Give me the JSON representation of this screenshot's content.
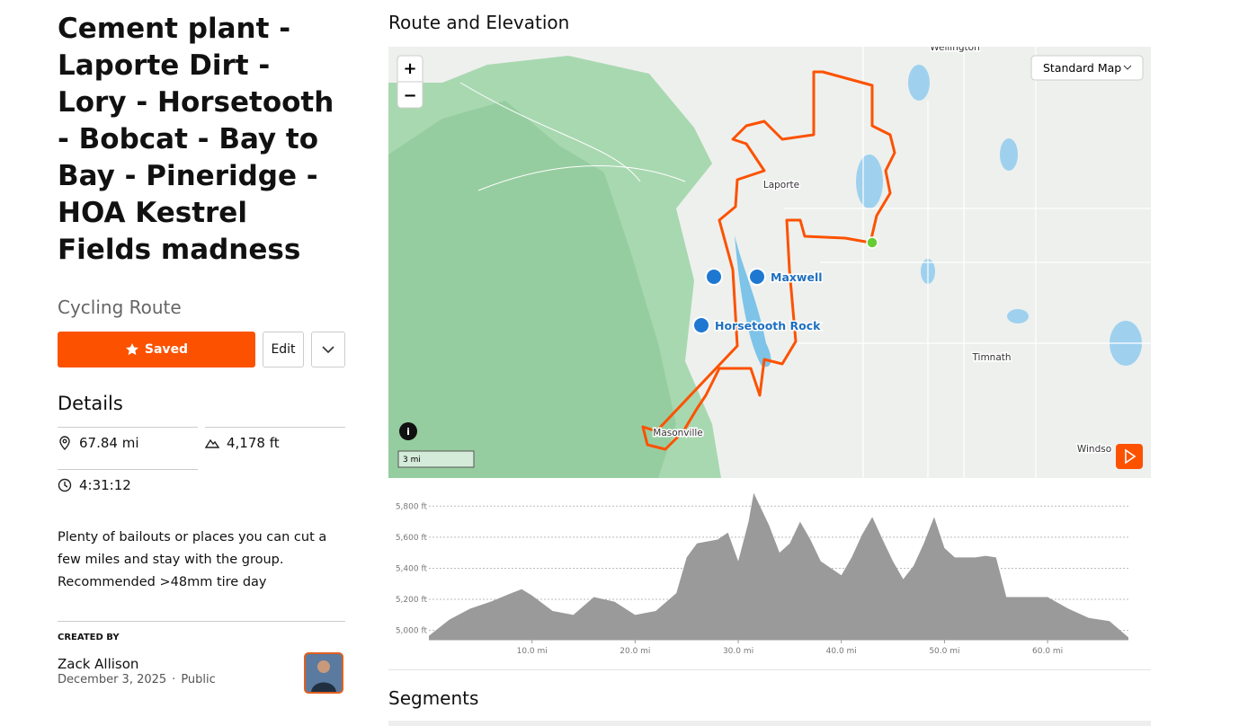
{
  "route": {
    "title": "Cement plant - Laporte Dirt - Lory - Horsetooth - Bobcat - Bay to Bay - Pineridge - HOA Kestrel Fields madness",
    "kind": "Cycling Route",
    "saved": "Saved",
    "edit": "Edit"
  },
  "details": {
    "heading": "Details",
    "distance": "67.84 mi",
    "elevation": "4,178 ft",
    "time": "4:31:12"
  },
  "description": "Plenty of bailouts or places you can cut a few miles and stay with the group. Recommended >48mm tire day",
  "creator": {
    "label": "CREATED BY",
    "name": "Zack Allison",
    "date": "December 3, 2025",
    "separator": "·",
    "visibility": "Public"
  },
  "map": {
    "heading": "Route and Elevation",
    "style": "Standard Map",
    "zoom_in": "+",
    "zoom_out": "−",
    "scale": "3 mi",
    "places": [
      "Wellington",
      "Laporte",
      "Timnath",
      "Masonville",
      "Windso"
    ],
    "pois": [
      "Maxwell",
      "Horsetooth Rock"
    ]
  },
  "elevation": {
    "type": "area",
    "x": [
      0,
      2,
      4,
      6,
      8,
      9,
      10,
      12,
      14,
      16,
      18,
      20,
      22,
      24,
      25,
      26,
      28,
      29,
      30,
      31,
      31.5,
      33,
      34,
      35,
      36,
      37,
      38,
      40,
      41,
      42,
      43,
      44,
      45,
      46,
      47,
      48,
      49,
      50,
      51,
      52,
      53,
      54,
      55,
      56,
      58,
      60,
      62,
      64,
      66,
      67.84
    ],
    "values": [
      4965,
      5070,
      5140,
      5185,
      5240,
      5265,
      5225,
      5125,
      5100,
      5215,
      5185,
      5100,
      5125,
      5240,
      5470,
      5560,
      5585,
      5630,
      5445,
      5700,
      5885,
      5675,
      5500,
      5560,
      5700,
      5585,
      5445,
      5355,
      5470,
      5615,
      5730,
      5585,
      5445,
      5330,
      5415,
      5560,
      5730,
      5530,
      5470,
      5470,
      5470,
      5480,
      5470,
      5215,
      5215,
      5215,
      5140,
      5080,
      5060,
      4955
    ],
    "xlim": [
      0,
      67.84
    ],
    "ylim": [
      4940,
      5900
    ],
    "xticks": [
      {
        "value": 10,
        "label": "10.0 mi"
      },
      {
        "value": 20,
        "label": "20.0 mi"
      },
      {
        "value": 30,
        "label": "30.0 mi"
      },
      {
        "value": 40,
        "label": "40.0 mi"
      },
      {
        "value": 50,
        "label": "50.0 mi"
      },
      {
        "value": 60,
        "label": "60.0 mi"
      }
    ],
    "yticks": [
      {
        "value": 5000,
        "label": "5,000 ft"
      },
      {
        "value": 5200,
        "label": "5,200 ft"
      },
      {
        "value": 5400,
        "label": "5,400 ft"
      },
      {
        "value": 5600,
        "label": "5,600 ft"
      },
      {
        "value": 5800,
        "label": "5,800 ft"
      }
    ],
    "color": "#9a9a9a",
    "grid": true
  },
  "segments": "Segments"
}
